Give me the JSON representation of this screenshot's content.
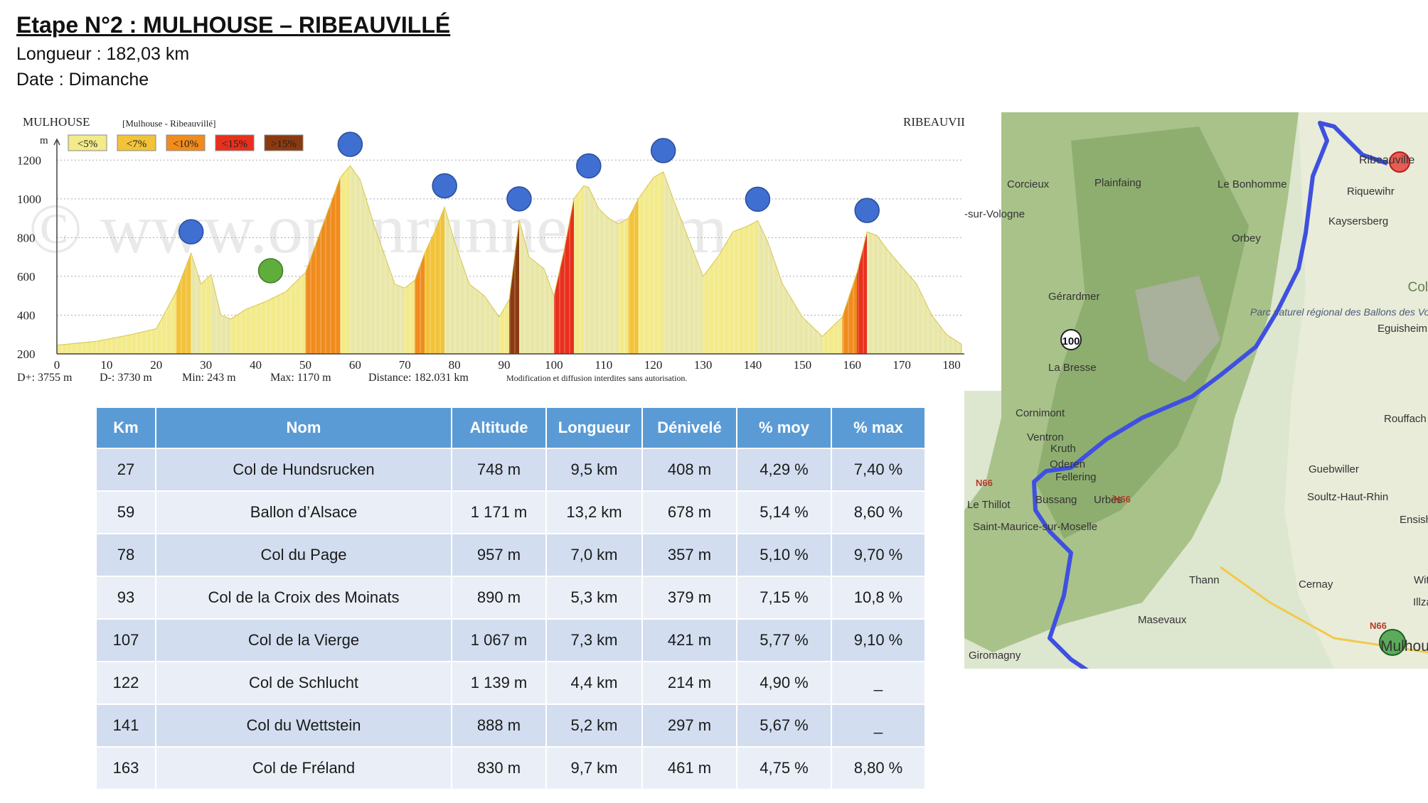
{
  "header": {
    "title": "Etape N°2 : MULHOUSE – RIBEAUVILLÉ",
    "length_line": "Longueur : 182,03 km",
    "date_line": "Date : Dimanche"
  },
  "chart_data": {
    "type": "area",
    "start_label": "MULHOUSE",
    "route_label": "[Mulhouse - Ribeauvillé]",
    "end_label": "RIBEAUVILLé",
    "y_unit": "m",
    "x_unit": "km",
    "legend": [
      "<5%",
      "<7%",
      "<10%",
      "<15%",
      ">15%"
    ],
    "legend_colors": [
      "#f3ea8a",
      "#f2c33a",
      "#f08c1d",
      "#e8301c",
      "#8b3a10"
    ],
    "xlim": [
      0,
      182
    ],
    "ylim": [
      200,
      1300
    ],
    "x_ticks": [
      0,
      10,
      20,
      30,
      40,
      50,
      60,
      70,
      80,
      90,
      100,
      110,
      120,
      130,
      140,
      150,
      160,
      170,
      180
    ],
    "y_ticks": [
      200,
      400,
      600,
      800,
      1000,
      1200
    ],
    "x": [
      0,
      8,
      15,
      20,
      24,
      27,
      29,
      31,
      33,
      35,
      38,
      42,
      46,
      50,
      54,
      57,
      59,
      61,
      64,
      68,
      70,
      72,
      74,
      76,
      78,
      80,
      83,
      86,
      89,
      91,
      93,
      95,
      98,
      100,
      102,
      104,
      106,
      107,
      109,
      111,
      113,
      115,
      117,
      120,
      122,
      124,
      127,
      130,
      133,
      136,
      139,
      141,
      143,
      146,
      150,
      154,
      158,
      161,
      163,
      165,
      167,
      170,
      173,
      176,
      179,
      182
    ],
    "y": [
      245,
      265,
      300,
      330,
      520,
      720,
      560,
      610,
      400,
      380,
      430,
      470,
      520,
      620,
      900,
      1110,
      1171,
      1100,
      850,
      560,
      540,
      580,
      720,
      830,
      957,
      780,
      560,
      500,
      390,
      480,
      890,
      700,
      640,
      500,
      730,
      1000,
      1067,
      1060,
      950,
      900,
      870,
      900,
      1000,
      1110,
      1139,
      1000,
      800,
      600,
      700,
      830,
      860,
      888,
      780,
      560,
      390,
      290,
      390,
      620,
      830,
      810,
      740,
      650,
      560,
      400,
      300,
      250
    ],
    "stats": {
      "dplus": "D+: 3755 m",
      "dminus": "D-: 3730 m",
      "min": "Min: 243 m",
      "max": "Max: 1170 m",
      "distance": "Distance: 182.031 km",
      "notice": "Modification et diffusion interdites sans autorisation."
    },
    "watermark": "© www.openrunner.com",
    "climb_markers_km": [
      27,
      59,
      78,
      93,
      107,
      122,
      141,
      163
    ],
    "sprint_markers_km": [
      43
    ],
    "colors": {
      "profile_base": "#e9e7a8",
      "climb_marker": "#3f6fd1",
      "sprint_marker": "#5fad3a"
    }
  },
  "map": {
    "places": [
      "Ribeauville",
      "Riquewihr",
      "Kaysersberg",
      "Corcieux",
      "Plainfaing",
      "Le Bonhomme",
      "Orbey",
      "-sur-Vologne",
      "Gérardmer",
      "Col",
      "Parc naturel régional des Ballons des Vosges",
      "Eguisheim",
      "La Bresse",
      "Cornimont",
      "Ventron",
      "Rouffach",
      "Kruth",
      "Oderen",
      "Fellering",
      "Guebwiller",
      "Le Thillot",
      "Bussang",
      "Urbès",
      "Soultz-Haut-Rhin",
      "Ensish",
      "Saint-Maurice-sur-Moselle",
      "Thann",
      "Cernay",
      "Wittenh",
      "Illzac",
      "Masevaux",
      "Giromagny",
      "Mulhous"
    ],
    "road_labels": [
      "100",
      "N66",
      "N66",
      "N66"
    ]
  },
  "climbs_table": {
    "headers": [
      "Km",
      "Nom",
      "Altitude",
      "Longueur",
      "Dénivelé",
      "% moy",
      "% max"
    ],
    "rows": [
      [
        "27",
        "Col de Hundsrucken",
        "748 m",
        "9,5 km",
        "408 m",
        "4,29 %",
        "7,40 %"
      ],
      [
        "59",
        "Ballon d’Alsace",
        "1 171 m",
        "13,2 km",
        "678 m",
        "5,14 %",
        "8,60 %"
      ],
      [
        "78",
        "Col du Page",
        "957 m",
        "7,0 km",
        "357 m",
        "5,10 %",
        "9,70 %"
      ],
      [
        "93",
        "Col de la Croix des Moinats",
        "890 m",
        "5,3 km",
        "379 m",
        "7,15 %",
        "10,8 %"
      ],
      [
        "107",
        "Col de la Vierge",
        "1 067 m",
        "7,3 km",
        "421 m",
        "5,77 %",
        "9,10 %"
      ],
      [
        "122",
        "Col de Schlucht",
        "1 139 m",
        "4,4 km",
        "214 m",
        "4,90 %",
        "_"
      ],
      [
        "141",
        "Col du Wettstein",
        "888 m",
        "5,2 km",
        "297 m",
        "5,67 %",
        "_"
      ],
      [
        "163",
        "Col de Fréland",
        "830 m",
        "9,7 km",
        "461 m",
        "4,75 %",
        "8,80 %"
      ]
    ]
  }
}
